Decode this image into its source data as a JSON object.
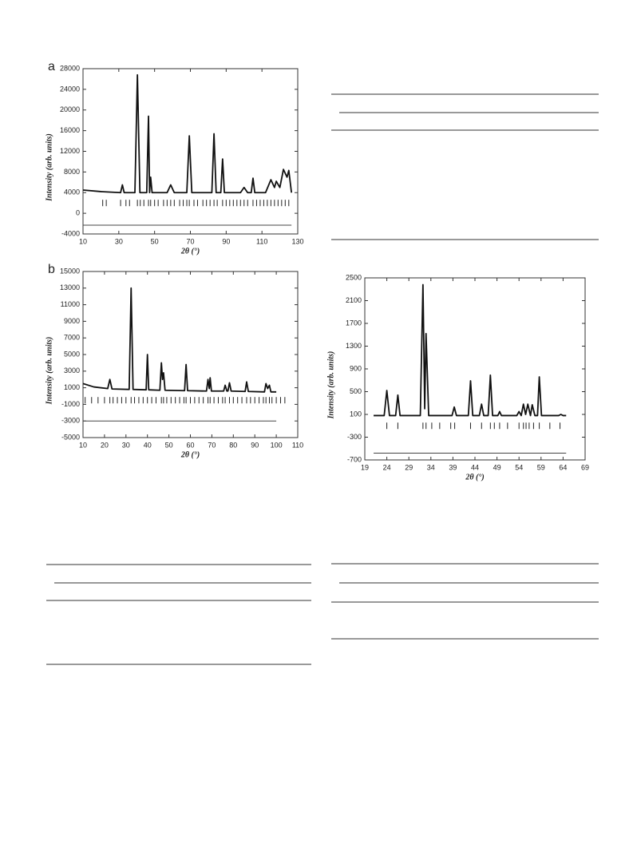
{
  "chart_data": [
    {
      "type": "line",
      "label": "a",
      "ylabel": "Intensity (arb. units)",
      "xlabel": "2θ (°)",
      "xlim": [
        10,
        130
      ],
      "xticks": [
        10,
        30,
        50,
        70,
        90,
        110,
        130
      ],
      "ylim": [
        -4000,
        28000
      ],
      "yticks": [
        -4000,
        0,
        4000,
        8000,
        12000,
        16000,
        20000,
        24000,
        28000
      ],
      "x": [
        10,
        20,
        31,
        32,
        33,
        39,
        40.4,
        41.8,
        45.6,
        46.6,
        47.2,
        47.8,
        48.6,
        57,
        59,
        61,
        68,
        69.4,
        70.8,
        82,
        83.2,
        84.4,
        87,
        88,
        89,
        98,
        100,
        102,
        104,
        105,
        106,
        112,
        115,
        117,
        118,
        120,
        122,
        124,
        125,
        126.5
      ],
      "values": [
        4500,
        4200,
        4000,
        5500,
        4000,
        4000,
        26800,
        4000,
        4000,
        18800,
        4000,
        7000,
        4000,
        4000,
        5500,
        4000,
        4000,
        15000,
        4000,
        4000,
        15400,
        4000,
        4000,
        10500,
        4000,
        4000,
        5000,
        4000,
        4000,
        6800,
        4000,
        4000,
        6500,
        5000,
        6200,
        5000,
        8500,
        7000,
        8300,
        4000
      ],
      "tick_positions": [
        21,
        23,
        31,
        34,
        36,
        40.4,
        42,
        44,
        46.6,
        47.8,
        50,
        52,
        55,
        57,
        59,
        61,
        64,
        66,
        68,
        69.4,
        72,
        74,
        77,
        79,
        81,
        83.2,
        85,
        88,
        90,
        92,
        94,
        96,
        98,
        100,
        102,
        105,
        107,
        109,
        111,
        113,
        115,
        117,
        119,
        121,
        123,
        125
      ],
      "tick_level": 2000,
      "difference_level": -2300
    },
    {
      "type": "line",
      "label": "b",
      "ylabel": "Intensity (arb. units)",
      "xlabel": "2θ (°)",
      "xlim": [
        10,
        110
      ],
      "xticks": [
        10,
        20,
        30,
        40,
        50,
        60,
        70,
        80,
        90,
        100,
        110
      ],
      "ylim": [
        -5000,
        15000
      ],
      "yticks": [
        -5000,
        -3000,
        -1000,
        1000,
        3000,
        5000,
        7000,
        9000,
        11000,
        13000,
        15000
      ],
      "x": [
        10,
        15,
        21.5,
        22.5,
        23.5,
        31.5,
        32.4,
        33.3,
        39.4,
        40,
        40.6,
        45.8,
        46.5,
        47,
        47.5,
        48.2,
        57.3,
        58,
        58.7,
        67.5,
        68.2,
        68.8,
        69.2,
        69.8,
        75.5,
        76.2,
        77,
        77.5,
        78.2,
        79,
        85.5,
        86.2,
        87,
        94.5,
        95.2,
        96,
        96.8,
        97.5,
        100
      ],
      "values": [
        1500,
        1100,
        900,
        2000,
        850,
        800,
        13000,
        800,
        750,
        5000,
        750,
        700,
        4000,
        2000,
        2800,
        700,
        650,
        3800,
        650,
        600,
        2000,
        900,
        2200,
        600,
        600,
        1300,
        600,
        600,
        1600,
        600,
        550,
        1700,
        550,
        500,
        1500,
        900,
        1300,
        500,
        500
      ],
      "tick_positions": [
        11,
        14,
        17,
        20,
        22.5,
        24,
        26,
        28,
        30,
        32.4,
        34,
        36,
        38,
        40,
        42,
        44,
        46.5,
        47.5,
        49,
        51,
        53,
        55,
        57,
        58,
        60,
        62,
        64,
        66,
        68.2,
        69.2,
        71,
        73,
        75,
        76.2,
        78.2,
        80,
        82,
        84,
        86.2,
        88,
        90,
        92,
        94,
        95.2,
        96.8,
        98,
        100,
        102,
        104
      ],
      "tick_level": -500,
      "difference_level": -3000
    },
    {
      "type": "line",
      "ylabel": "Intensity (arb. units)",
      "xlabel": "2θ (°)",
      "xlim": [
        19,
        69
      ],
      "xticks": [
        19,
        24,
        29,
        34,
        39,
        44,
        49,
        54,
        59,
        64,
        69
      ],
      "ylim": [
        -700,
        2500
      ],
      "yticks": [
        -700,
        -300,
        100,
        500,
        900,
        1300,
        1700,
        2100,
        2500
      ],
      "x": [
        21,
        23.4,
        24,
        24.6,
        26,
        26.5,
        27,
        31.6,
        32.2,
        32.6,
        32.9,
        33.5,
        38.8,
        39.3,
        39.8,
        42.5,
        43,
        43.5,
        45,
        45.5,
        46,
        47,
        47.5,
        48,
        49.2,
        49.6,
        50,
        53.5,
        54,
        54.5,
        55,
        55.5,
        56,
        56.6,
        57,
        57.6,
        58.2,
        58.6,
        59.1,
        63,
        63.5,
        64,
        64.7
      ],
      "values": [
        80,
        80,
        520,
        80,
        80,
        440,
        80,
        80,
        2380,
        200,
        1520,
        80,
        80,
        230,
        80,
        80,
        690,
        80,
        80,
        280,
        80,
        80,
        790,
        80,
        80,
        150,
        80,
        80,
        150,
        80,
        280,
        100,
        280,
        80,
        270,
        80,
        80,
        760,
        80,
        80,
        100,
        80,
        80
      ],
      "tick_positions": [
        24,
        26.5,
        32.2,
        32.9,
        34.2,
        36,
        38.5,
        39.4,
        43,
        45.5,
        47.5,
        48.4,
        49.6,
        51.4,
        54,
        55,
        55.6,
        56.3,
        57.3,
        58.6,
        61,
        63.3
      ],
      "tick_level": -100,
      "difference_level": -580
    }
  ]
}
